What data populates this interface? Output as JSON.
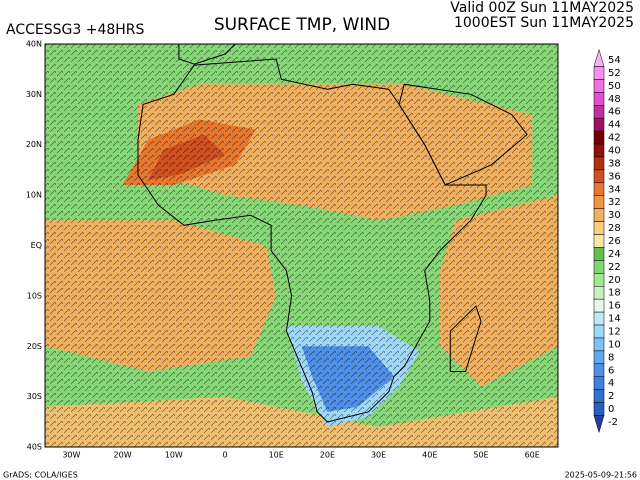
{
  "header": {
    "model": "ACCESSG3 +48HRS",
    "title": "SURFACE TMP, WIND",
    "valid": "Valid 00Z Sun 11MAY2025",
    "local": "1000EST Sun 11MAY2025"
  },
  "map": {
    "lat_labels": [
      "40N",
      "30N",
      "20N",
      "10N",
      "EQ",
      "10S",
      "20S",
      "30S",
      "40S"
    ],
    "lon_labels": [
      "30W",
      "20W",
      "10W",
      "0",
      "10E",
      "20E",
      "30E",
      "40E",
      "50E",
      "60E"
    ]
  },
  "colorbar": {
    "levels": [
      54,
      52,
      50,
      48,
      46,
      44,
      42,
      40,
      38,
      36,
      34,
      32,
      30,
      28,
      26,
      24,
      22,
      20,
      18,
      16,
      14,
      12,
      10,
      8,
      6,
      4,
      2,
      0,
      -2
    ],
    "colors": [
      "#f8b0f8",
      "#f890f0",
      "#f070e0",
      "#e050d0",
      "#c030a0",
      "#a01060",
      "#700000",
      "#901008",
      "#b03010",
      "#d05020",
      "#e87830",
      "#f09840",
      "#f0b060",
      "#f8d080",
      "#f8e8a8",
      "#60c050",
      "#80d870",
      "#a0e890",
      "#c8f0c0",
      "#e8f8e8",
      "#c0e8ff",
      "#a0d8f8",
      "#80c0f8",
      "#60a8f0",
      "#5090e8",
      "#4080e0",
      "#3070d0",
      "#2860c0",
      "#2040a0"
    ]
  },
  "footer": {
    "credit": "GrADS: COLA/IGES",
    "timestamp": "2025-05-09-21:56"
  }
}
